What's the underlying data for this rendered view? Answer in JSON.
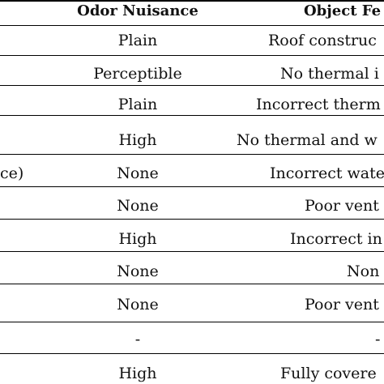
{
  "table": {
    "headers": {
      "odor": "Odor Nuisance",
      "object": "Object Fe"
    },
    "rows": [
      {
        "left": "",
        "odor": "Plain",
        "object": "Roof construc"
      },
      {
        "left": "",
        "odor": "Perceptible",
        "object": "No thermal i"
      },
      {
        "left": "",
        "odor": "Plain",
        "object": "Incorrect therm"
      },
      {
        "left": "",
        "odor": "High",
        "object": "No thermal and w"
      },
      {
        "left": "ce)",
        "odor": "None",
        "object": "Incorrect wate"
      },
      {
        "left": "",
        "odor": "None",
        "object": "Poor vent"
      },
      {
        "left": "",
        "odor": "High",
        "object": "Incorrect in"
      },
      {
        "left": "",
        "odor": "None",
        "object": "Non"
      },
      {
        "left": "",
        "odor": "None",
        "object": "Poor vent"
      },
      {
        "left": "",
        "odor": "-",
        "object": "-"
      },
      {
        "left": "",
        "odor": "High",
        "object": "Fully covere"
      }
    ]
  }
}
